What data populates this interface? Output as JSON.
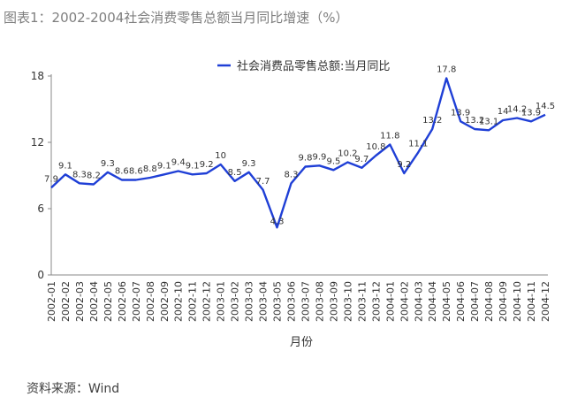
{
  "figure": {
    "title": "图表1：2002-2004社会消费零售总额当月同比增速（%）",
    "source": "资料来源：Wind"
  },
  "chart_data": {
    "type": "line",
    "title": "图表1：2002-2004社会消费零售总额当月同比增速（%）",
    "xlabel": "月份",
    "ylabel": "",
    "ylim": [
      0,
      18
    ],
    "yticks": [
      0,
      6,
      12,
      18
    ],
    "grid": false,
    "legend_position": "top-center",
    "line_color": "#1f3fd6",
    "x": [
      "2002-01",
      "2002-02",
      "2002-03",
      "2002-04",
      "2002-05",
      "2002-06",
      "2002-07",
      "2002-08",
      "2002-09",
      "2002-10",
      "2002-11",
      "2002-12",
      "2003-01",
      "2003-02",
      "2003-03",
      "2003-04",
      "2003-05",
      "2003-06",
      "2003-07",
      "2003-08",
      "2003-09",
      "2003-10",
      "2003-11",
      "2003-12",
      "2004-01",
      "2004-02",
      "2004-03",
      "2004-04",
      "2004-05",
      "2004-06",
      "2004-07",
      "2004-08",
      "2004-09",
      "2004-10",
      "2004-11",
      "2004-12"
    ],
    "series": [
      {
        "name": "社会消费品零售总额:当月同比",
        "values": [
          7.9,
          9.1,
          8.3,
          8.2,
          9.3,
          8.6,
          8.6,
          8.8,
          9.1,
          9.4,
          9.1,
          9.2,
          10,
          8.5,
          9.3,
          7.7,
          4.3,
          8.3,
          9.8,
          9.9,
          9.5,
          10.2,
          9.7,
          10.8,
          11.8,
          9.2,
          11.1,
          13.2,
          17.8,
          13.9,
          13.2,
          13.1,
          14,
          14.2,
          13.9,
          14.5
        ],
        "labels": [
          "7.9",
          "9.1",
          "8.3",
          "8.2",
          "9.3",
          "8.6",
          "8.6",
          "8.8",
          "9.1",
          "9.4",
          "9.1",
          "9.2",
          "10",
          "8.5",
          "9.3",
          "7.7",
          "4.3",
          "8.3",
          "9.8",
          "9.9",
          "9.5",
          "10.2",
          "9.7",
          "10.8",
          "11.8",
          "9.2",
          "11.1",
          "13.2",
          "17.8",
          "13.9",
          "13.2",
          "13.1",
          "14",
          "14.2",
          "13.9",
          "14.5"
        ]
      }
    ]
  }
}
